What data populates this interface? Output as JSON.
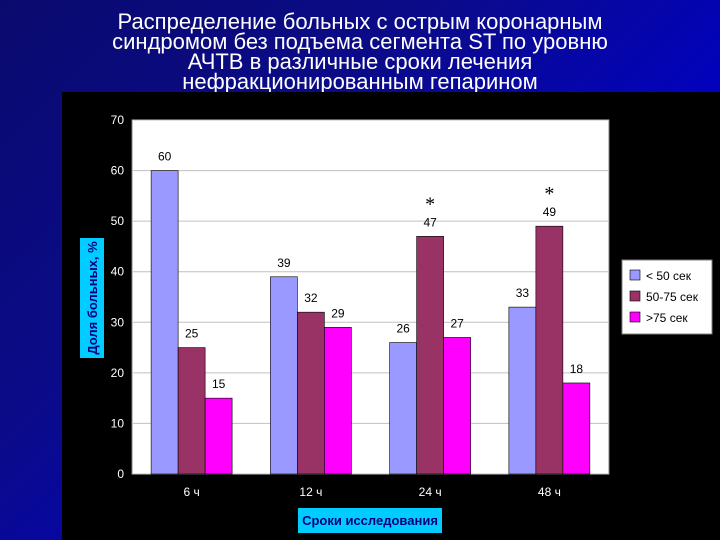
{
  "slide": {
    "title_lines": [
      "Распределение больных с острым коронарным",
      "синдромом без подъема сегмента ST по уровню",
      "АЧТВ в различные сроки лечения",
      "нефракционированным гепарином"
    ]
  },
  "chart_data": {
    "type": "bar",
    "categories": [
      "6 ч",
      "12 ч",
      "24 ч",
      "48 ч"
    ],
    "series": [
      {
        "name": "< 50 сек",
        "color": "#9999ff",
        "values": [
          60,
          39,
          26,
          33
        ]
      },
      {
        "name": "50-75 сек",
        "color": "#993366",
        "values": [
          25,
          32,
          47,
          49
        ]
      },
      {
        "name": ">75 сек",
        "color": "#ff00ff",
        "values": [
          15,
          29,
          27,
          18
        ]
      }
    ],
    "xlabel": "Сроки исследования",
    "ylabel": "Доля больных, %",
    "ylim": [
      0,
      70
    ],
    "yticks": [
      0,
      10,
      20,
      30,
      40,
      50,
      60,
      70
    ],
    "grid": true,
    "legend": "right",
    "annotations": [
      {
        "category": "24 ч",
        "series": "50-75 сек",
        "text": "*"
      },
      {
        "category": "48 ч",
        "series": "50-75 сек",
        "text": "*"
      }
    ],
    "colors": {
      "plot_background": "#ffffff",
      "axis_text": "#ffffff",
      "axis_label_background": "#00ccff",
      "axis_label_text": "#000080"
    }
  }
}
